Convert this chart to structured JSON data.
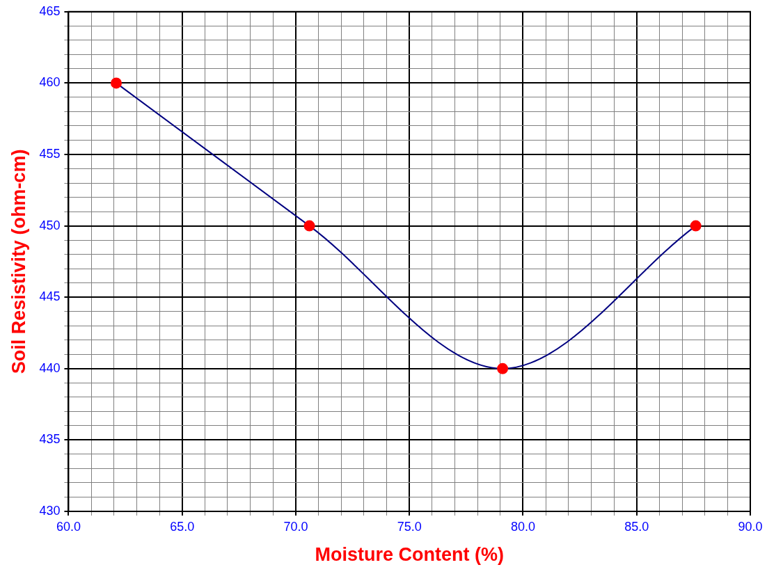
{
  "chart_data": {
    "type": "line",
    "xlabel": "Moisture Content (%)",
    "ylabel": "Soil Resistivity (ohm-cm)",
    "x": [
      62.1,
      70.6,
      79.1,
      87.6
    ],
    "series": [
      {
        "color": "#000080",
        "colors": [
          "#ff0000",
          "#ff0000",
          "#ff0000",
          "#ff0000"
        ],
        "values": [
          460,
          450,
          440,
          450
        ]
      }
    ],
    "marker": "circle",
    "line_style": "solid",
    "grid": true,
    "legend": false,
    "xlim": [
      60,
      90
    ],
    "ylim": [
      430,
      465
    ],
    "xticks": [
      {
        "value": 60,
        "label": "60.0"
      },
      {
        "value": 61,
        "label": null
      },
      {
        "value": 62,
        "label": null
      },
      {
        "value": 63,
        "label": null
      },
      {
        "value": 64,
        "label": null
      },
      {
        "value": 65,
        "label": "65.0"
      },
      {
        "value": 66,
        "label": null
      },
      {
        "value": 67,
        "label": null
      },
      {
        "value": 68,
        "label": null
      },
      {
        "value": 69,
        "label": null
      },
      {
        "value": 70,
        "label": "70.0"
      },
      {
        "value": 71,
        "label": null
      },
      {
        "value": 72,
        "label": null
      },
      {
        "value": 73,
        "label": null
      },
      {
        "value": 74,
        "label": null
      },
      {
        "value": 75,
        "label": "75.0"
      },
      {
        "value": 76,
        "label": null
      },
      {
        "value": 77,
        "label": null
      },
      {
        "value": 78,
        "label": null
      },
      {
        "value": 79,
        "label": null
      },
      {
        "value": 80,
        "label": "80.0"
      },
      {
        "value": 81,
        "label": null
      },
      {
        "value": 82,
        "label": null
      },
      {
        "value": 83,
        "label": null
      },
      {
        "value": 84,
        "label": null
      },
      {
        "value": 85,
        "label": "85.0"
      },
      {
        "value": 86,
        "label": null
      },
      {
        "value": 87,
        "label": null
      },
      {
        "value": 88,
        "label": null
      },
      {
        "value": 89,
        "label": null
      },
      {
        "value": 90,
        "label": "90.0"
      }
    ],
    "yticks": [
      430,
      {
        "value": 431,
        "label": null
      },
      {
        "value": 432,
        "label": null
      },
      {
        "value": 433,
        "label": null
      },
      {
        "value": 434,
        "label": null
      },
      435,
      {
        "value": 436,
        "label": null
      },
      {
        "value": 437,
        "label": null
      },
      {
        "value": 438,
        "label": null
      },
      {
        "value": 439,
        "label": null
      },
      440,
      {
        "value": 441,
        "label": null
      },
      {
        "value": 442,
        "label": null
      },
      {
        "value": 443,
        "label": null
      },
      {
        "value": 444,
        "label": null
      },
      445,
      {
        "value": 446,
        "label": null
      },
      {
        "value": 447,
        "label": null
      },
      {
        "value": 448,
        "label": null
      },
      {
        "value": 449,
        "label": null
      },
      450,
      {
        "value": 451,
        "label": null
      },
      {
        "value": 452,
        "label": null
      },
      {
        "value": 453,
        "label": null
      },
      {
        "value": 454,
        "label": null
      },
      455,
      {
        "value": 456,
        "label": null
      },
      {
        "value": 457,
        "label": null
      },
      {
        "value": 458,
        "label": null
      },
      {
        "value": 459,
        "label": null
      },
      460,
      {
        "value": 461,
        "label": null
      },
      {
        "value": 462,
        "label": null
      },
      {
        "value": 463,
        "label": null
      },
      {
        "value": 464,
        "label": null
      },
      465
    ]
  }
}
